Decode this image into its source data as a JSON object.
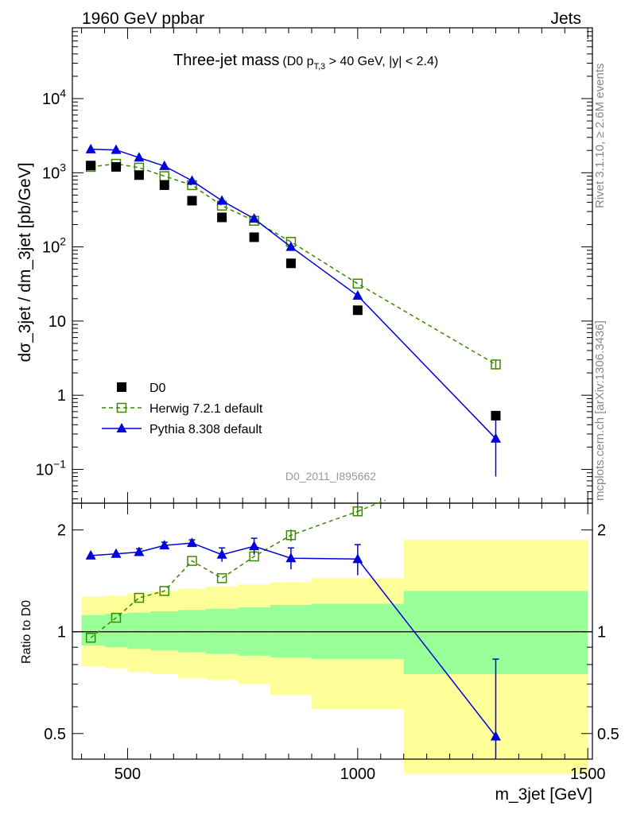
{
  "header": {
    "left": "1960 GeV ppbar",
    "right": "Jets"
  },
  "title": {
    "main": "Three-jet mass",
    "sub_prefix": "(D0 p",
    "sub_subscript": "T,3",
    "sub_suffix": " > 40 GeV, |y| < 2.4)"
  },
  "side_labels": {
    "upper": "Rivet 3.1.10, ≥ 2.6M events",
    "lower": "mcplots.cern.ch [arXiv:1306.3436]"
  },
  "watermark": "D0_2011_I895662",
  "colors": {
    "data": "#000000",
    "herwig": "#3a8a00",
    "pythia": "#0000dd",
    "band_inner": "#99ff99",
    "band_outer": "#ffff99"
  },
  "legend": {
    "entries": [
      {
        "label": "D0",
        "marker": "square-filled"
      },
      {
        "label": "Herwig 7.2.1 default",
        "marker": "square-open-dashed"
      },
      {
        "label": "Pythia 8.308 default",
        "marker": "triangle-filled"
      }
    ],
    "position": "lower-left"
  },
  "chart_data": [
    {
      "type": "scatter",
      "panel": "main",
      "ylabel": "dσ_3jet / dm_3jet [pb/GeV]",
      "xlim": [
        380,
        1510
      ],
      "ylim": [
        0.035,
        90000
      ],
      "yscale": "log",
      "yticks": [
        {
          "value": 0.1,
          "label": "10",
          "sup": "−1"
        },
        {
          "value": 1,
          "label": "1",
          "sup": ""
        },
        {
          "value": 10,
          "label": "10",
          "sup": ""
        },
        {
          "value": 100,
          "label": "10",
          "sup": "2"
        },
        {
          "value": 1000,
          "label": "10",
          "sup": "3"
        },
        {
          "value": 10000,
          "label": "10",
          "sup": "4"
        }
      ],
      "series": [
        {
          "name": "D0",
          "x": [
            420,
            475,
            525,
            580,
            640,
            705,
            775,
            855,
            1000,
            1300
          ],
          "y": [
            1250,
            1200,
            930,
            680,
            420,
            250,
            135,
            60,
            14,
            0.53
          ]
        },
        {
          "name": "Herwig 7.2.1 default",
          "x": [
            420,
            475,
            525,
            580,
            640,
            705,
            775,
            855,
            1000,
            1300
          ],
          "y": [
            1200,
            1320,
            1170,
            900,
            680,
            360,
            225,
            117,
            32,
            2.6
          ],
          "yerr": [
            0,
            0,
            0,
            0,
            0,
            0,
            0,
            0,
            0,
            0.35
          ]
        },
        {
          "name": "Pythia 8.308 default",
          "x": [
            420,
            475,
            525,
            580,
            640,
            705,
            775,
            855,
            1000,
            1300
          ],
          "y": [
            2070,
            2030,
            1600,
            1230,
            780,
            420,
            240,
            100,
            22,
            0.26
          ],
          "yerr_low": [
            0,
            0,
            0,
            0,
            0,
            0,
            0,
            0,
            0,
            0.18
          ],
          "yerr_high": [
            0,
            0,
            0,
            0,
            0,
            0,
            0,
            0,
            0,
            0.22
          ]
        }
      ],
      "grid": false
    },
    {
      "type": "line",
      "panel": "ratio",
      "xlabel": "m_3jet [GeV]",
      "ylabel": "Ratio to D0",
      "xlim": [
        380,
        1510
      ],
      "ylim": [
        0.42,
        2.4
      ],
      "yscale": "log",
      "xticks": [
        500,
        1000,
        1500
      ],
      "yticks": [
        {
          "value": 0.5,
          "label": "0.5"
        },
        {
          "value": 1,
          "label": "1"
        },
        {
          "value": 2,
          "label": "2"
        }
      ],
      "bands": [
        {
          "x0": 400,
          "x1": 450,
          "inner": [
            0.91,
            1.12
          ],
          "outer": [
            0.79,
            1.27
          ]
        },
        {
          "x0": 450,
          "x1": 500,
          "inner": [
            0.9,
            1.13
          ],
          "outer": [
            0.78,
            1.28
          ]
        },
        {
          "x0": 500,
          "x1": 550,
          "inner": [
            0.89,
            1.14
          ],
          "outer": [
            0.76,
            1.3
          ]
        },
        {
          "x0": 550,
          "x1": 610,
          "inner": [
            0.88,
            1.15
          ],
          "outer": [
            0.75,
            1.32
          ]
        },
        {
          "x0": 610,
          "x1": 670,
          "inner": [
            0.87,
            1.16
          ],
          "outer": [
            0.73,
            1.34
          ]
        },
        {
          "x0": 670,
          "x1": 740,
          "inner": [
            0.86,
            1.17
          ],
          "outer": [
            0.72,
            1.36
          ]
        },
        {
          "x0": 740,
          "x1": 810,
          "inner": [
            0.85,
            1.18
          ],
          "outer": [
            0.7,
            1.38
          ]
        },
        {
          "x0": 810,
          "x1": 900,
          "inner": [
            0.84,
            1.2
          ],
          "outer": [
            0.65,
            1.4
          ]
        },
        {
          "x0": 900,
          "x1": 1100,
          "inner": [
            0.83,
            1.21
          ],
          "outer": [
            0.59,
            1.44
          ]
        },
        {
          "x0": 1100,
          "x1": 1500,
          "inner": [
            0.75,
            1.32
          ],
          "outer": [
            0.38,
            1.87
          ]
        }
      ],
      "series": [
        {
          "name": "Herwig 7.2.1 default",
          "x": [
            420,
            475,
            525,
            580,
            640,
            705,
            775,
            855,
            1000
          ],
          "y": [
            0.96,
            1.1,
            1.26,
            1.32,
            1.62,
            1.44,
            1.67,
            1.93,
            2.27
          ],
          "yerr": [
            0,
            0,
            0,
            0,
            0,
            0,
            0,
            0.08,
            0.06
          ]
        },
        {
          "name": "Pythia 8.308 default",
          "x": [
            420,
            475,
            525,
            580,
            640,
            705,
            775,
            855,
            1000,
            1300
          ],
          "y": [
            1.68,
            1.7,
            1.72,
            1.8,
            1.83,
            1.69,
            1.79,
            1.65,
            1.64,
            0.49
          ],
          "yerr": [
            0,
            0,
            0.04,
            0.04,
            0.04,
            0.08,
            0.1,
            0.12,
            0.17,
            0.34
          ]
        }
      ],
      "reference_line": 1,
      "grid": false
    }
  ]
}
